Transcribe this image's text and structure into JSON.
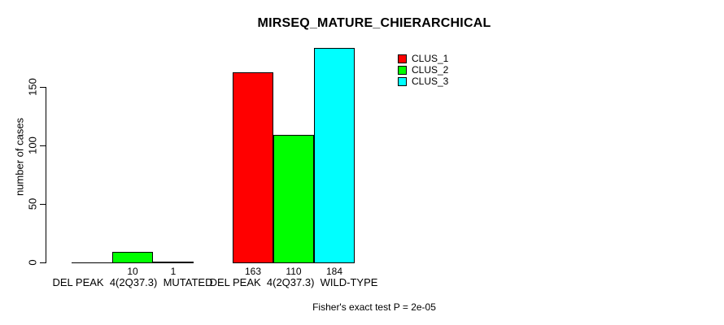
{
  "chart_data": {
    "type": "bar",
    "title": "MIRSEQ_MATURE_CHIERARCHICAL",
    "ylabel": "number of cases",
    "xlabel": "",
    "categories": [
      "DEL PEAK  4(2Q37.3)  MUTATED",
      "DEL PEAK  4(2Q37.3)  WILD-TYPE"
    ],
    "series": [
      {
        "name": "CLUS_1",
        "color": "#ff0000",
        "values": [
          0,
          163
        ],
        "bar_labels": [
          "",
          "163"
        ]
      },
      {
        "name": "CLUS_2",
        "color": "#00ff00",
        "values": [
          10,
          110
        ],
        "bar_labels": [
          "10",
          "110"
        ]
      },
      {
        "name": "CLUS_3",
        "color": "#00ffff",
        "values": [
          1,
          184
        ],
        "bar_labels": [
          "1",
          "184"
        ]
      }
    ],
    "yticks": [
      0,
      50,
      100,
      150
    ],
    "ylim": [
      0,
      190
    ],
    "grid": false,
    "bar_outline_color": "#000000",
    "legend_position": "top-right",
    "footnote": "Fisher's exact test P = 2e-05"
  }
}
